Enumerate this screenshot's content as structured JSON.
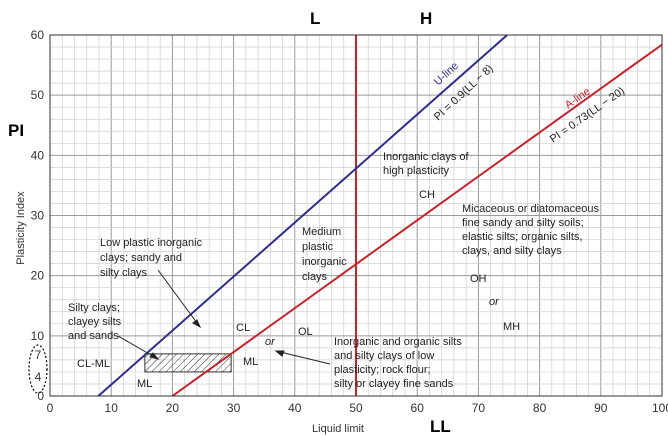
{
  "chart_data": {
    "type": "line",
    "title": "",
    "xlabel": "Liquid limit",
    "ylabel": "Plasticity Index",
    "xlim": [
      0,
      100
    ],
    "ylim": [
      0,
      60
    ],
    "xticks": [
      0,
      10,
      20,
      30,
      40,
      50,
      60,
      70,
      80,
      90,
      100
    ],
    "yticks": [
      0,
      10,
      20,
      30,
      40,
      50,
      60
    ],
    "grid": true,
    "big_labels": {
      "x_axis": "LL",
      "y_axis": "PI",
      "low": "L",
      "high": "H"
    },
    "side_ticks": {
      "upper": "7",
      "lower": "4"
    },
    "series": [
      {
        "name": "U-line",
        "equation": "PI = 0.9(LL − 8)",
        "color": "#2e2e8a",
        "points": [
          [
            7.9,
            0
          ],
          [
            74.7,
            60
          ]
        ]
      },
      {
        "name": "A-line",
        "equation": "PI = 0.73(LL − 20)",
        "color": "#c8232c",
        "points": [
          [
            20,
            0
          ],
          [
            100,
            58.4
          ]
        ]
      }
    ],
    "vertical_line": {
      "x": 50,
      "color": "#c8232c"
    },
    "hatched_band": {
      "y_range": [
        4,
        7
      ],
      "x_range": [
        15.5,
        29.6
      ]
    },
    "zones": [
      {
        "key": "low_plastic",
        "lines": [
          "Low plastic inorganic",
          "clays; sandy and",
          "silty clays"
        ]
      },
      {
        "key": "medium",
        "lines": [
          "Medium",
          "plastic",
          "inorganic",
          "clays"
        ]
      },
      {
        "key": "high",
        "lines": [
          "Inorganic clays of",
          "high plasticity"
        ]
      },
      {
        "key": "ch",
        "lines": [
          "CH"
        ]
      },
      {
        "key": "micaceous",
        "lines": [
          "Micaceous or diatomaceous",
          "fine sandy and silty soils;",
          "elastic silts; organic silts,",
          "clays, and silty clays"
        ]
      },
      {
        "key": "oh",
        "lines": [
          "OH"
        ]
      },
      {
        "key": "or_high",
        "lines": [
          "or"
        ]
      },
      {
        "key": "mh",
        "lines": [
          "MH"
        ]
      },
      {
        "key": "silty",
        "lines": [
          "Silty clays;",
          "clayey silts",
          "and sands"
        ]
      },
      {
        "key": "cl",
        "lines": [
          "CL"
        ]
      },
      {
        "key": "ol",
        "lines": [
          "OL"
        ]
      },
      {
        "key": "or_low",
        "lines": [
          "or"
        ]
      },
      {
        "key": "ml_right",
        "lines": [
          "ML"
        ]
      },
      {
        "key": "clml",
        "lines": [
          "CL-ML"
        ]
      },
      {
        "key": "ml_bottom",
        "lines": [
          "ML"
        ]
      },
      {
        "key": "inorganic_organic",
        "lines": [
          "Inorganic and organic silts",
          "and silty clays of low",
          "plasticity; rock flour;",
          "silty or clayey fine sands"
        ]
      }
    ]
  }
}
